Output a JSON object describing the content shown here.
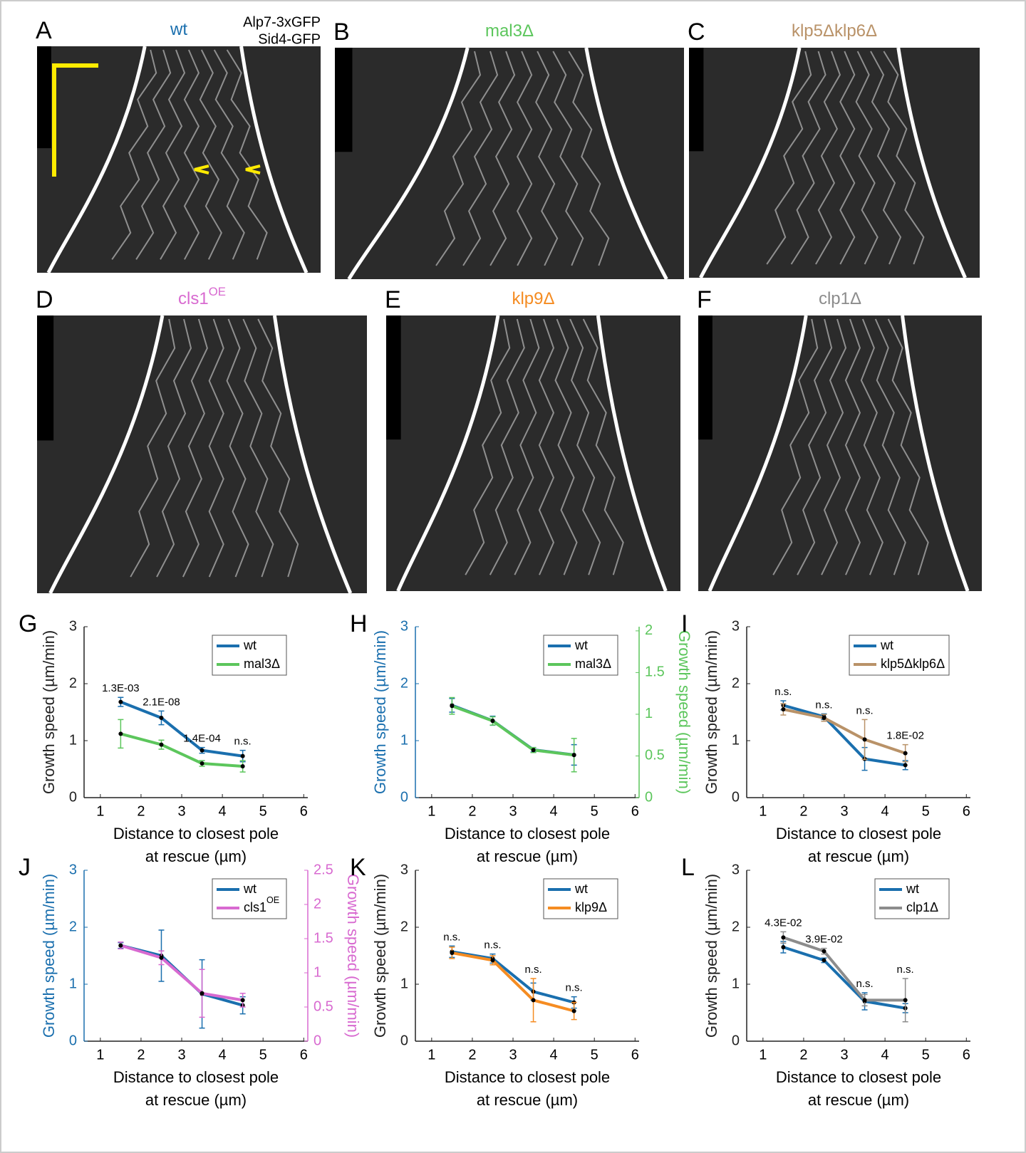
{
  "kymographs": [
    {
      "panel": "A",
      "title": "wt",
      "color": "#1a6fae",
      "labels": [
        "Alp7-3xGFP",
        "Sid4-GFP"
      ]
    },
    {
      "panel": "B",
      "title": "mal3Δ",
      "color": "#5cc65c"
    },
    {
      "panel": "C",
      "title": "klp5Δklp6Δ",
      "color": "#b99268"
    },
    {
      "panel": "D",
      "title": "cls1",
      "sup": "OE",
      "color": "#d86ad0"
    },
    {
      "panel": "E",
      "title": "klp9Δ",
      "color": "#f58c22"
    },
    {
      "panel": "F",
      "title": "clp1Δ",
      "color": "#8c8c8c"
    }
  ],
  "chart_data": [
    {
      "type": "line",
      "panel": "G",
      "xlabel": [
        "Distance to closest pole",
        "at rescue (µm)"
      ],
      "ylabel": "Growth speed (µm/min)",
      "xlim": [
        0.6,
        6.1
      ],
      "xticks": [
        1,
        2,
        3,
        4,
        5,
        6
      ],
      "ylim": [
        0,
        3
      ],
      "yticks": [
        0,
        1,
        2,
        3
      ],
      "legend": "upper right",
      "x": [
        1.5,
        2.5,
        3.5,
        4.5
      ],
      "point_labels": [
        "1.3E-03",
        "2.1E-08",
        "1.4E-04",
        "n.s."
      ],
      "series": [
        {
          "name": "wt",
          "color": "#1a6fae",
          "values": [
            1.68,
            1.4,
            0.83,
            0.73
          ],
          "errors": [
            0.08,
            0.12,
            0.05,
            0.1
          ]
        },
        {
          "name": "mal3Δ",
          "color": "#5cc65c",
          "values": [
            1.12,
            0.93,
            0.6,
            0.55
          ],
          "errors": [
            0.25,
            0.08,
            0.05,
            0.1
          ]
        }
      ]
    },
    {
      "type": "line",
      "panel": "H",
      "xlabel": [
        "Distance to closest pole",
        "at rescue (µm)"
      ],
      "ylabel": "Growth speed (µm/min)",
      "y2label": "Growth speed (µm/min)",
      "xlim": [
        0.6,
        6.1
      ],
      "xticks": [
        1,
        2,
        3,
        4,
        5,
        6
      ],
      "ylim": [
        0,
        3
      ],
      "yticks": [
        0,
        1,
        2,
        3
      ],
      "y2lim": [
        0,
        2.05
      ],
      "y2ticks": [
        0,
        0.5,
        1,
        1.5,
        2
      ],
      "legend": "upper right",
      "x": [
        1.5,
        2.5,
        3.5,
        4.5
      ],
      "series": [
        {
          "name": "wt",
          "color": "#1a6fae",
          "values": [
            1.62,
            1.35,
            0.84,
            0.75
          ],
          "errors": [
            0.12,
            0.08,
            0.04,
            0.18
          ]
        },
        {
          "name": "mal3Δ",
          "color": "#5cc65c",
          "axis": "y2",
          "values": [
            1.1,
            0.92,
            0.57,
            0.51
          ],
          "errors": [
            0.1,
            0.05,
            0.03,
            0.2
          ]
        }
      ]
    },
    {
      "type": "line",
      "panel": "I",
      "xlabel": [
        "Distance to closest pole",
        "at rescue (µm)"
      ],
      "ylabel": "Growth speed (µm/min)",
      "xlim": [
        0.6,
        6.1
      ],
      "xticks": [
        1,
        2,
        3,
        4,
        5,
        6
      ],
      "ylim": [
        0,
        3
      ],
      "yticks": [
        0,
        1,
        2,
        3
      ],
      "legend": "upper right",
      "x": [
        1.5,
        2.5,
        3.5,
        4.5
      ],
      "point_labels": [
        "n.s.",
        "n.s.",
        "n.s.",
        "1.8E-02"
      ],
      "series": [
        {
          "name": "wt",
          "color": "#1a6fae",
          "values": [
            1.62,
            1.42,
            0.68,
            0.57
          ],
          "errors": [
            0.08,
            0.05,
            0.2,
            0.08
          ]
        },
        {
          "name": "klp5Δklp6Δ",
          "color": "#b99268",
          "values": [
            1.55,
            1.4,
            1.02,
            0.78
          ],
          "errors": [
            0.1,
            0.06,
            0.35,
            0.15
          ]
        }
      ]
    },
    {
      "type": "line",
      "panel": "J",
      "xlabel": [
        "Distance to closest pole",
        "at rescue (µm)"
      ],
      "ylabel": "Growth speed (µm/min)",
      "y2label": "Growth speed (µm/min)",
      "xlim": [
        0.6,
        6.1
      ],
      "xticks": [
        1,
        2,
        3,
        4,
        5,
        6
      ],
      "ylim": [
        0,
        3
      ],
      "yticks": [
        0,
        1,
        2,
        3
      ],
      "y2lim": [
        0,
        2.5
      ],
      "y2ticks": [
        0,
        0.5,
        1,
        1.5,
        2,
        2.5
      ],
      "legend": "upper right",
      "x": [
        1.5,
        2.5,
        3.5,
        4.5
      ],
      "series": [
        {
          "name": "wt",
          "color": "#1a6fae",
          "values": [
            1.68,
            1.5,
            0.83,
            0.63
          ],
          "errors": [
            0.05,
            0.45,
            0.6,
            0.15
          ]
        },
        {
          "name": "cls1",
          "sup": "OE",
          "color": "#d86ad0",
          "axis": "y2",
          "values": [
            1.4,
            1.22,
            0.7,
            0.6
          ],
          "errors": [
            0.05,
            0.1,
            0.35,
            0.1
          ]
        }
      ]
    },
    {
      "type": "line",
      "panel": "K",
      "xlabel": [
        "Distance to closest pole",
        "at rescue (µm)"
      ],
      "ylabel": "Growth speed (µm/min)",
      "xlim": [
        0.6,
        6.1
      ],
      "xticks": [
        1,
        2,
        3,
        4,
        5,
        6
      ],
      "ylim": [
        0,
        3
      ],
      "yticks": [
        0,
        1,
        2,
        3
      ],
      "legend": "upper right",
      "x": [
        1.5,
        2.5,
        3.5,
        4.5
      ],
      "point_labels": [
        "n.s.",
        "n.s.",
        "n.s.",
        "n.s."
      ],
      "series": [
        {
          "name": "wt",
          "color": "#1a6fae",
          "values": [
            1.57,
            1.45,
            0.87,
            0.68
          ],
          "errors": [
            0.1,
            0.08,
            0.15,
            0.1
          ]
        },
        {
          "name": "klp9Δ",
          "color": "#f58c22",
          "values": [
            1.55,
            1.42,
            0.72,
            0.53
          ],
          "errors": [
            0.1,
            0.08,
            0.38,
            0.15
          ]
        }
      ]
    },
    {
      "type": "line",
      "panel": "L",
      "xlabel": [
        "Distance to closest pole",
        "at rescue (µm)"
      ],
      "ylabel": "Growth speed (µm/min)",
      "xlim": [
        0.6,
        6.1
      ],
      "xticks": [
        1,
        2,
        3,
        4,
        5,
        6
      ],
      "ylim": [
        0,
        3
      ],
      "yticks": [
        0,
        1,
        2,
        3
      ],
      "legend": "upper right",
      "x": [
        1.5,
        2.5,
        3.5,
        4.5
      ],
      "point_labels": [
        "4.3E-02",
        "3.9E-02",
        "n.s.",
        "n.s."
      ],
      "series": [
        {
          "name": "wt",
          "color": "#1a6fae",
          "values": [
            1.65,
            1.42,
            0.7,
            0.58
          ],
          "errors": [
            0.1,
            0.04,
            0.15,
            0.08
          ]
        },
        {
          "name": "clp1Δ",
          "color": "#8c8c8c",
          "values": [
            1.82,
            1.58,
            0.72,
            0.72
          ],
          "errors": [
            0.1,
            0.05,
            0.1,
            0.38
          ]
        }
      ]
    }
  ]
}
